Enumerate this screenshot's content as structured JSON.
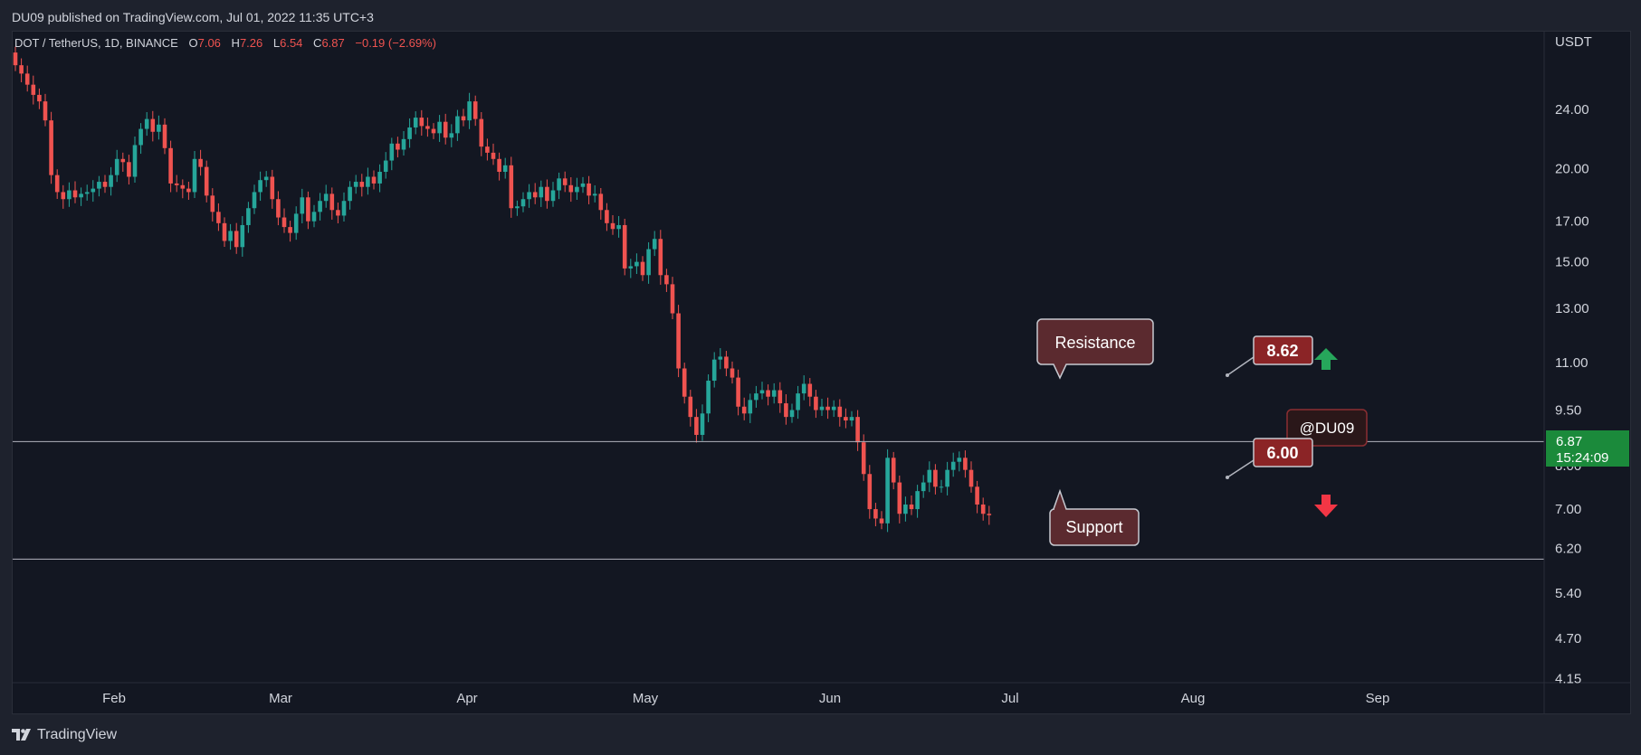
{
  "header": {
    "published_by": "DU09 published on TradingView.com, Jul 01, 2022 11:35 UTC+3"
  },
  "legend": {
    "symbol": "DOT / TetherUS, 1D, BINANCE",
    "o_label": "O",
    "o_value": "7.06",
    "h_label": "H",
    "h_value": "7.26",
    "l_label": "L",
    "l_value": "6.54",
    "c_label": "C",
    "c_value": "6.87",
    "change": "−0.19 (−2.69%)"
  },
  "footer": {
    "brand": "TradingView"
  },
  "colors": {
    "up": "#26a69a",
    "down": "#ef5350",
    "background": "#131722",
    "label_box": "#7b2629",
    "price_tag": "#1b8a3b",
    "grid_line": "#b2b5be"
  },
  "chart_data": {
    "type": "candlestick",
    "scale": "log",
    "currency": "USDT",
    "x_ticks": [
      "Feb",
      "Mar",
      "Apr",
      "May",
      "Jun",
      "Jul",
      "Aug",
      "Sep"
    ],
    "y_ticks": [
      "24.00",
      "20.00",
      "17.00",
      "15.00",
      "13.00",
      "11.00",
      "9.50",
      "8.00",
      "7.00",
      "6.20",
      "5.40",
      "4.70",
      "4.15"
    ],
    "y_range": [
      4.1,
      30.5
    ],
    "last_price": {
      "value": "6.87",
      "countdown": "15:24:09"
    },
    "levels": [
      {
        "name": "resistance",
        "value": 8.62,
        "tag": "8.62",
        "label": "Resistance"
      },
      {
        "name": "support",
        "value": 6.0,
        "tag": "6.00",
        "label": "Support"
      }
    ],
    "watermark": "@DU09",
    "close_prices": [
      27.5,
      26.8,
      25.9,
      25.1,
      24.6,
      23.2,
      19.6,
      18.6,
      18.2,
      18.7,
      18.3,
      18.5,
      18.6,
      18.8,
      19.2,
      18.9,
      19.6,
      20.6,
      20.4,
      19.5,
      21.5,
      22.6,
      23.3,
      22.4,
      22.9,
      21.3,
      19.1,
      19.0,
      18.8,
      18.6,
      20.6,
      20.1,
      18.4,
      17.5,
      16.9,
      16.0,
      16.5,
      15.7,
      16.8,
      17.7,
      18.6,
      19.3,
      19.5,
      18.2,
      17.2,
      16.7,
      16.4,
      17.4,
      18.3,
      17.0,
      17.5,
      18.1,
      18.5,
      17.6,
      17.3,
      18.1,
      18.9,
      19.2,
      18.9,
      19.5,
      19.1,
      19.8,
      20.5,
      21.6,
      21.2,
      21.9,
      22.7,
      23.4,
      22.8,
      22.6,
      22.3,
      23.1,
      22.0,
      22.3,
      23.5,
      23.2,
      24.6,
      23.3,
      21.4,
      21.0,
      20.6,
      19.8,
      20.2,
      17.7,
      17.8,
      18.2,
      18.6,
      18.3,
      18.9,
      18.1,
      18.7,
      19.4,
      19.0,
      18.6,
      18.9,
      19.1,
      18.4,
      18.5,
      17.6,
      16.9,
      16.6,
      16.8,
      14.7,
      14.8,
      15.0,
      14.4,
      15.6,
      16.1,
      14.4,
      14.0,
      12.8,
      10.8,
      9.9,
      9.3,
      8.8,
      9.4,
      10.4,
      11.1,
      11.2,
      10.8,
      10.5,
      9.6,
      9.4,
      9.8,
      10.0,
      10.1,
      9.9,
      10.1,
      9.7,
      9.3,
      9.5,
      10.0,
      10.3,
      9.9,
      9.5,
      9.6,
      9.5,
      9.6,
      9.3,
      9.2,
      9.3,
      8.6,
      7.8,
      7.0,
      6.8,
      6.7,
      8.2,
      7.6,
      6.9,
      7.1,
      7.0,
      7.4,
      7.6,
      7.9,
      7.5,
      7.5,
      7.9,
      8.1,
      8.2,
      7.9,
      7.5,
      7.1,
      6.9,
      6.87
    ]
  }
}
